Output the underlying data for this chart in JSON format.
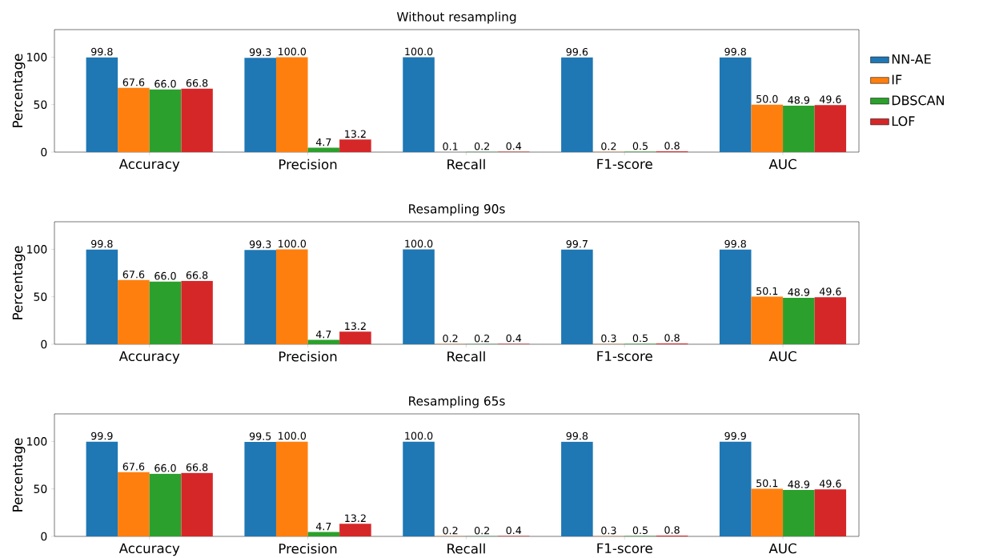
{
  "chart_data": [
    {
      "type": "bar",
      "title": "Without resampling",
      "ylabel": "Percentage",
      "categories": [
        "Accuracy",
        "Precision",
        "Recall",
        "F1-score",
        "AUC"
      ],
      "ylim": [
        0,
        129
      ],
      "yticks": [
        0,
        50,
        100
      ],
      "grid": false,
      "legend": "right",
      "tick_labels": "xy",
      "series": [
        {
          "name": "NN-AE",
          "color": "#1f77b4",
          "values": [
            99.8,
            99.3,
            100.0,
            99.6,
            99.8
          ],
          "value_labels": [
            "99.8",
            "99.3",
            "100.0",
            "99.6",
            "99.8"
          ]
        },
        {
          "name": "IF",
          "color": "#ff7f0e",
          "values": [
            67.6,
            100.0,
            0.1,
            0.2,
            50.0
          ],
          "value_labels": [
            "67.6",
            "100.0",
            "0.1",
            "0.2",
            "50.0"
          ]
        },
        {
          "name": "DBSCAN",
          "color": "#2ca02c",
          "values": [
            66.0,
            4.7,
            0.2,
            0.5,
            48.9
          ],
          "value_labels": [
            "66.0",
            "4.7",
            "0.2",
            "0.5",
            "48.9"
          ]
        },
        {
          "name": "LOF",
          "color": "#d62728",
          "values": [
            66.8,
            13.2,
            0.4,
            0.8,
            49.6
          ],
          "value_labels": [
            "66.8",
            "13.2",
            "0.4",
            "0.8",
            "49.6"
          ]
        }
      ]
    },
    {
      "type": "bar",
      "title": "Resampling 90s",
      "ylabel": "Percentage",
      "categories": [
        "Accuracy",
        "Precision",
        "Recall",
        "F1-score",
        "AUC"
      ],
      "ylim": [
        0,
        129
      ],
      "yticks": [
        0,
        50,
        100
      ],
      "grid": false,
      "legend": false,
      "tick_labels": "xy",
      "series": [
        {
          "color": "#1f77b4",
          "values": [
            99.8,
            99.3,
            100.0,
            99.7,
            99.8
          ],
          "value_labels": [
            "99.8",
            "99.3",
            "100.0",
            "99.7",
            "99.8"
          ]
        },
        {
          "color": "#ff7f0e",
          "values": [
            67.6,
            100.0,
            0.2,
            0.3,
            50.1
          ],
          "value_labels": [
            "67.6",
            "100.0",
            "0.2",
            "0.3",
            "50.1"
          ]
        },
        {
          "color": "#2ca02c",
          "values": [
            66.0,
            4.7,
            0.2,
            0.5,
            48.9
          ],
          "value_labels": [
            "66.0",
            "4.7",
            "0.2",
            "0.5",
            "48.9"
          ]
        },
        {
          "color": "#d62728",
          "values": [
            66.8,
            13.2,
            0.4,
            0.8,
            49.6
          ],
          "value_labels": [
            "66.8",
            "13.2",
            "0.4",
            "0.8",
            "49.6"
          ]
        }
      ]
    },
    {
      "type": "bar",
      "title": "Resampling 65s",
      "ylabel": "Percentage",
      "categories": [
        "Accuracy",
        "Precision",
        "Recall",
        "F1-score",
        "AUC"
      ],
      "ylim": [
        0,
        129
      ],
      "yticks": [
        0,
        50,
        100
      ],
      "grid": false,
      "legend": false,
      "tick_labels": "xy",
      "series": [
        {
          "color": "#1f77b4",
          "values": [
            99.9,
            99.5,
            100.0,
            99.8,
            99.9
          ],
          "value_labels": [
            "99.9",
            "99.5",
            "100.0",
            "99.8",
            "99.9"
          ]
        },
        {
          "color": "#ff7f0e",
          "values": [
            67.6,
            100.0,
            0.2,
            0.3,
            50.1
          ],
          "value_labels": [
            "67.6",
            "100.0",
            "0.2",
            "0.3",
            "50.1"
          ]
        },
        {
          "color": "#2ca02c",
          "values": [
            66.0,
            4.7,
            0.2,
            0.5,
            48.9
          ],
          "value_labels": [
            "66.0",
            "4.7",
            "0.2",
            "0.5",
            "48.9"
          ]
        },
        {
          "color": "#d62728",
          "values": [
            66.8,
            13.2,
            0.4,
            0.8,
            49.6
          ],
          "value_labels": [
            "66.8",
            "13.2",
            "0.4",
            "0.8",
            "49.6"
          ]
        }
      ]
    }
  ]
}
